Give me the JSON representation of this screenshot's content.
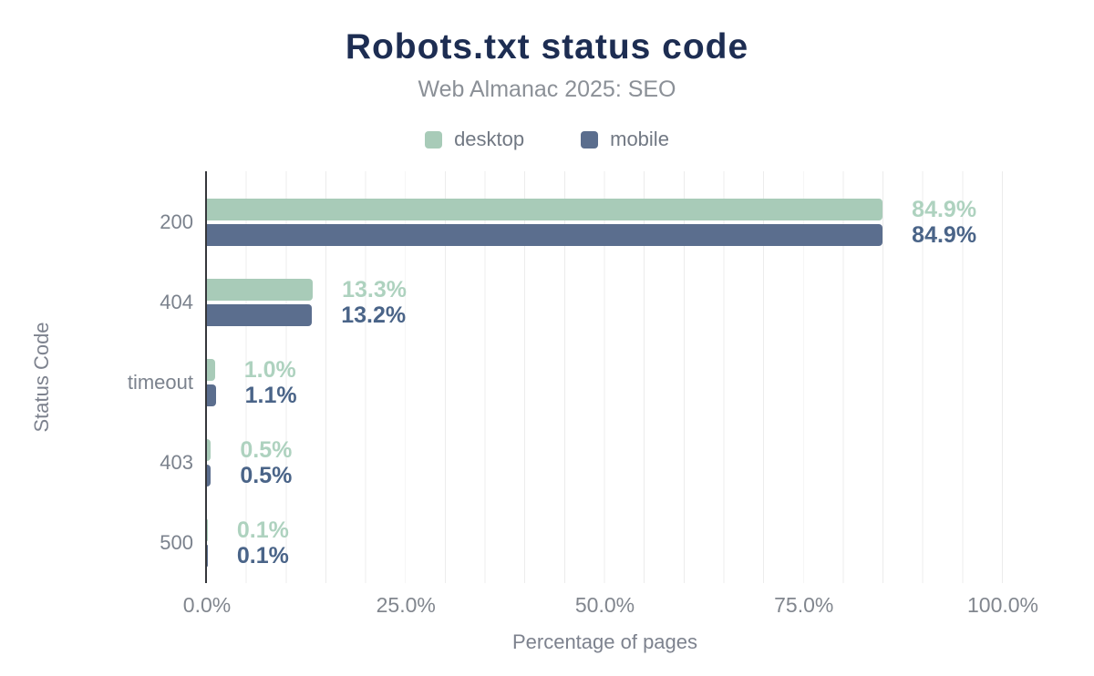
{
  "header": {
    "title": "Robots.txt status code",
    "subtitle": "Web Almanac 2025: SEO"
  },
  "legend": [
    {
      "label": "desktop",
      "color": "#a8cbb8"
    },
    {
      "label": "mobile",
      "color": "#5b6e8e"
    }
  ],
  "chart_data": {
    "type": "bar",
    "orientation": "horizontal",
    "title": "Robots.txt status code",
    "subtitle": "Web Almanac 2025: SEO",
    "categories": [
      "200",
      "404",
      "timeout",
      "403",
      "500"
    ],
    "series": [
      {
        "name": "desktop",
        "color": "#a8cbb8",
        "label_color": "#aed2bf",
        "values": [
          84.9,
          13.3,
          1.0,
          0.5,
          0.1
        ],
        "labels": [
          "84.9%",
          "13.3%",
          "1.0%",
          "0.5%",
          "0.1%"
        ]
      },
      {
        "name": "mobile",
        "color": "#5b6e8e",
        "label_color": "#4a6488",
        "values": [
          84.9,
          13.2,
          1.1,
          0.5,
          0.1
        ],
        "labels": [
          "84.9%",
          "13.2%",
          "1.1%",
          "0.5%",
          "0.1%"
        ]
      }
    ],
    "xlabel": "Percentage of pages",
    "ylabel": "Status Code",
    "xlim": [
      0,
      100
    ],
    "x_ticks": [
      "0.0%",
      "25.0%",
      "50.0%",
      "75.0%",
      "100.0%"
    ],
    "grid": "vertical lines every 5%",
    "legend_position": "top"
  }
}
